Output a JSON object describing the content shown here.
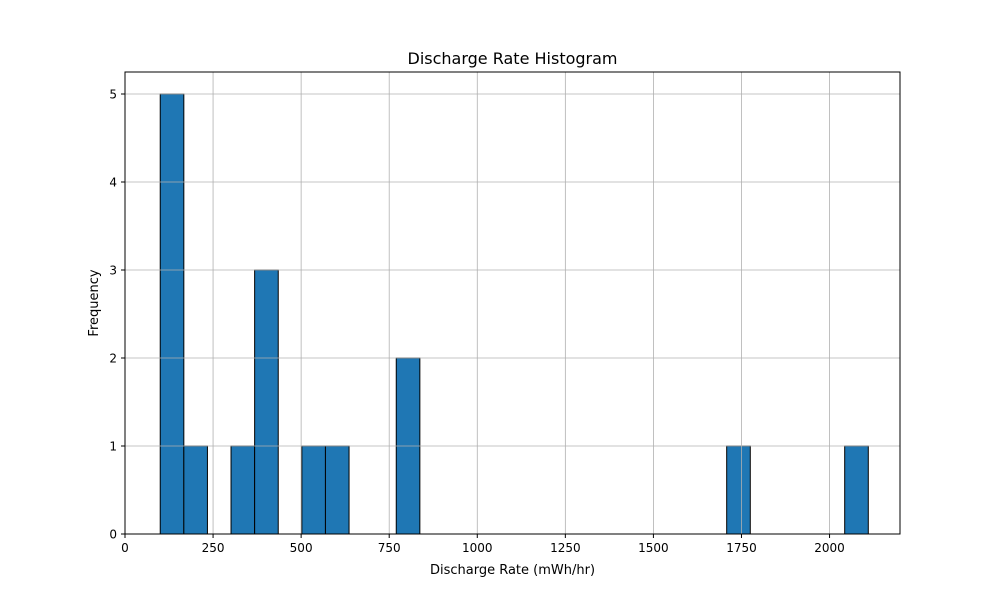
{
  "chart_data": {
    "type": "bar",
    "subtype": "histogram",
    "title": "Discharge Rate Histogram",
    "xlabel": "Discharge Rate (mWh/hr)",
    "ylabel": "Frequency",
    "xlim": [
      0,
      2200
    ],
    "ylim": [
      0,
      5.25
    ],
    "xticks": [
      0,
      250,
      500,
      750,
      1000,
      1250,
      1500,
      1750,
      2000
    ],
    "yticks": [
      0,
      1,
      2,
      3,
      4,
      5
    ],
    "grid": true,
    "bar_color": "#1f77b4",
    "edge_color": "#000000",
    "bins": [
      {
        "x0": 100,
        "x1": 167,
        "count": 5
      },
      {
        "x0": 167,
        "x1": 234,
        "count": 1
      },
      {
        "x0": 301,
        "x1": 368,
        "count": 1
      },
      {
        "x0": 368,
        "x1": 435,
        "count": 3
      },
      {
        "x0": 502,
        "x1": 569,
        "count": 1
      },
      {
        "x0": 569,
        "x1": 636,
        "count": 1
      },
      {
        "x0": 770,
        "x1": 837,
        "count": 2
      },
      {
        "x0": 1708,
        "x1": 1775,
        "count": 1
      },
      {
        "x0": 2043,
        "x1": 2110,
        "count": 1
      }
    ]
  }
}
